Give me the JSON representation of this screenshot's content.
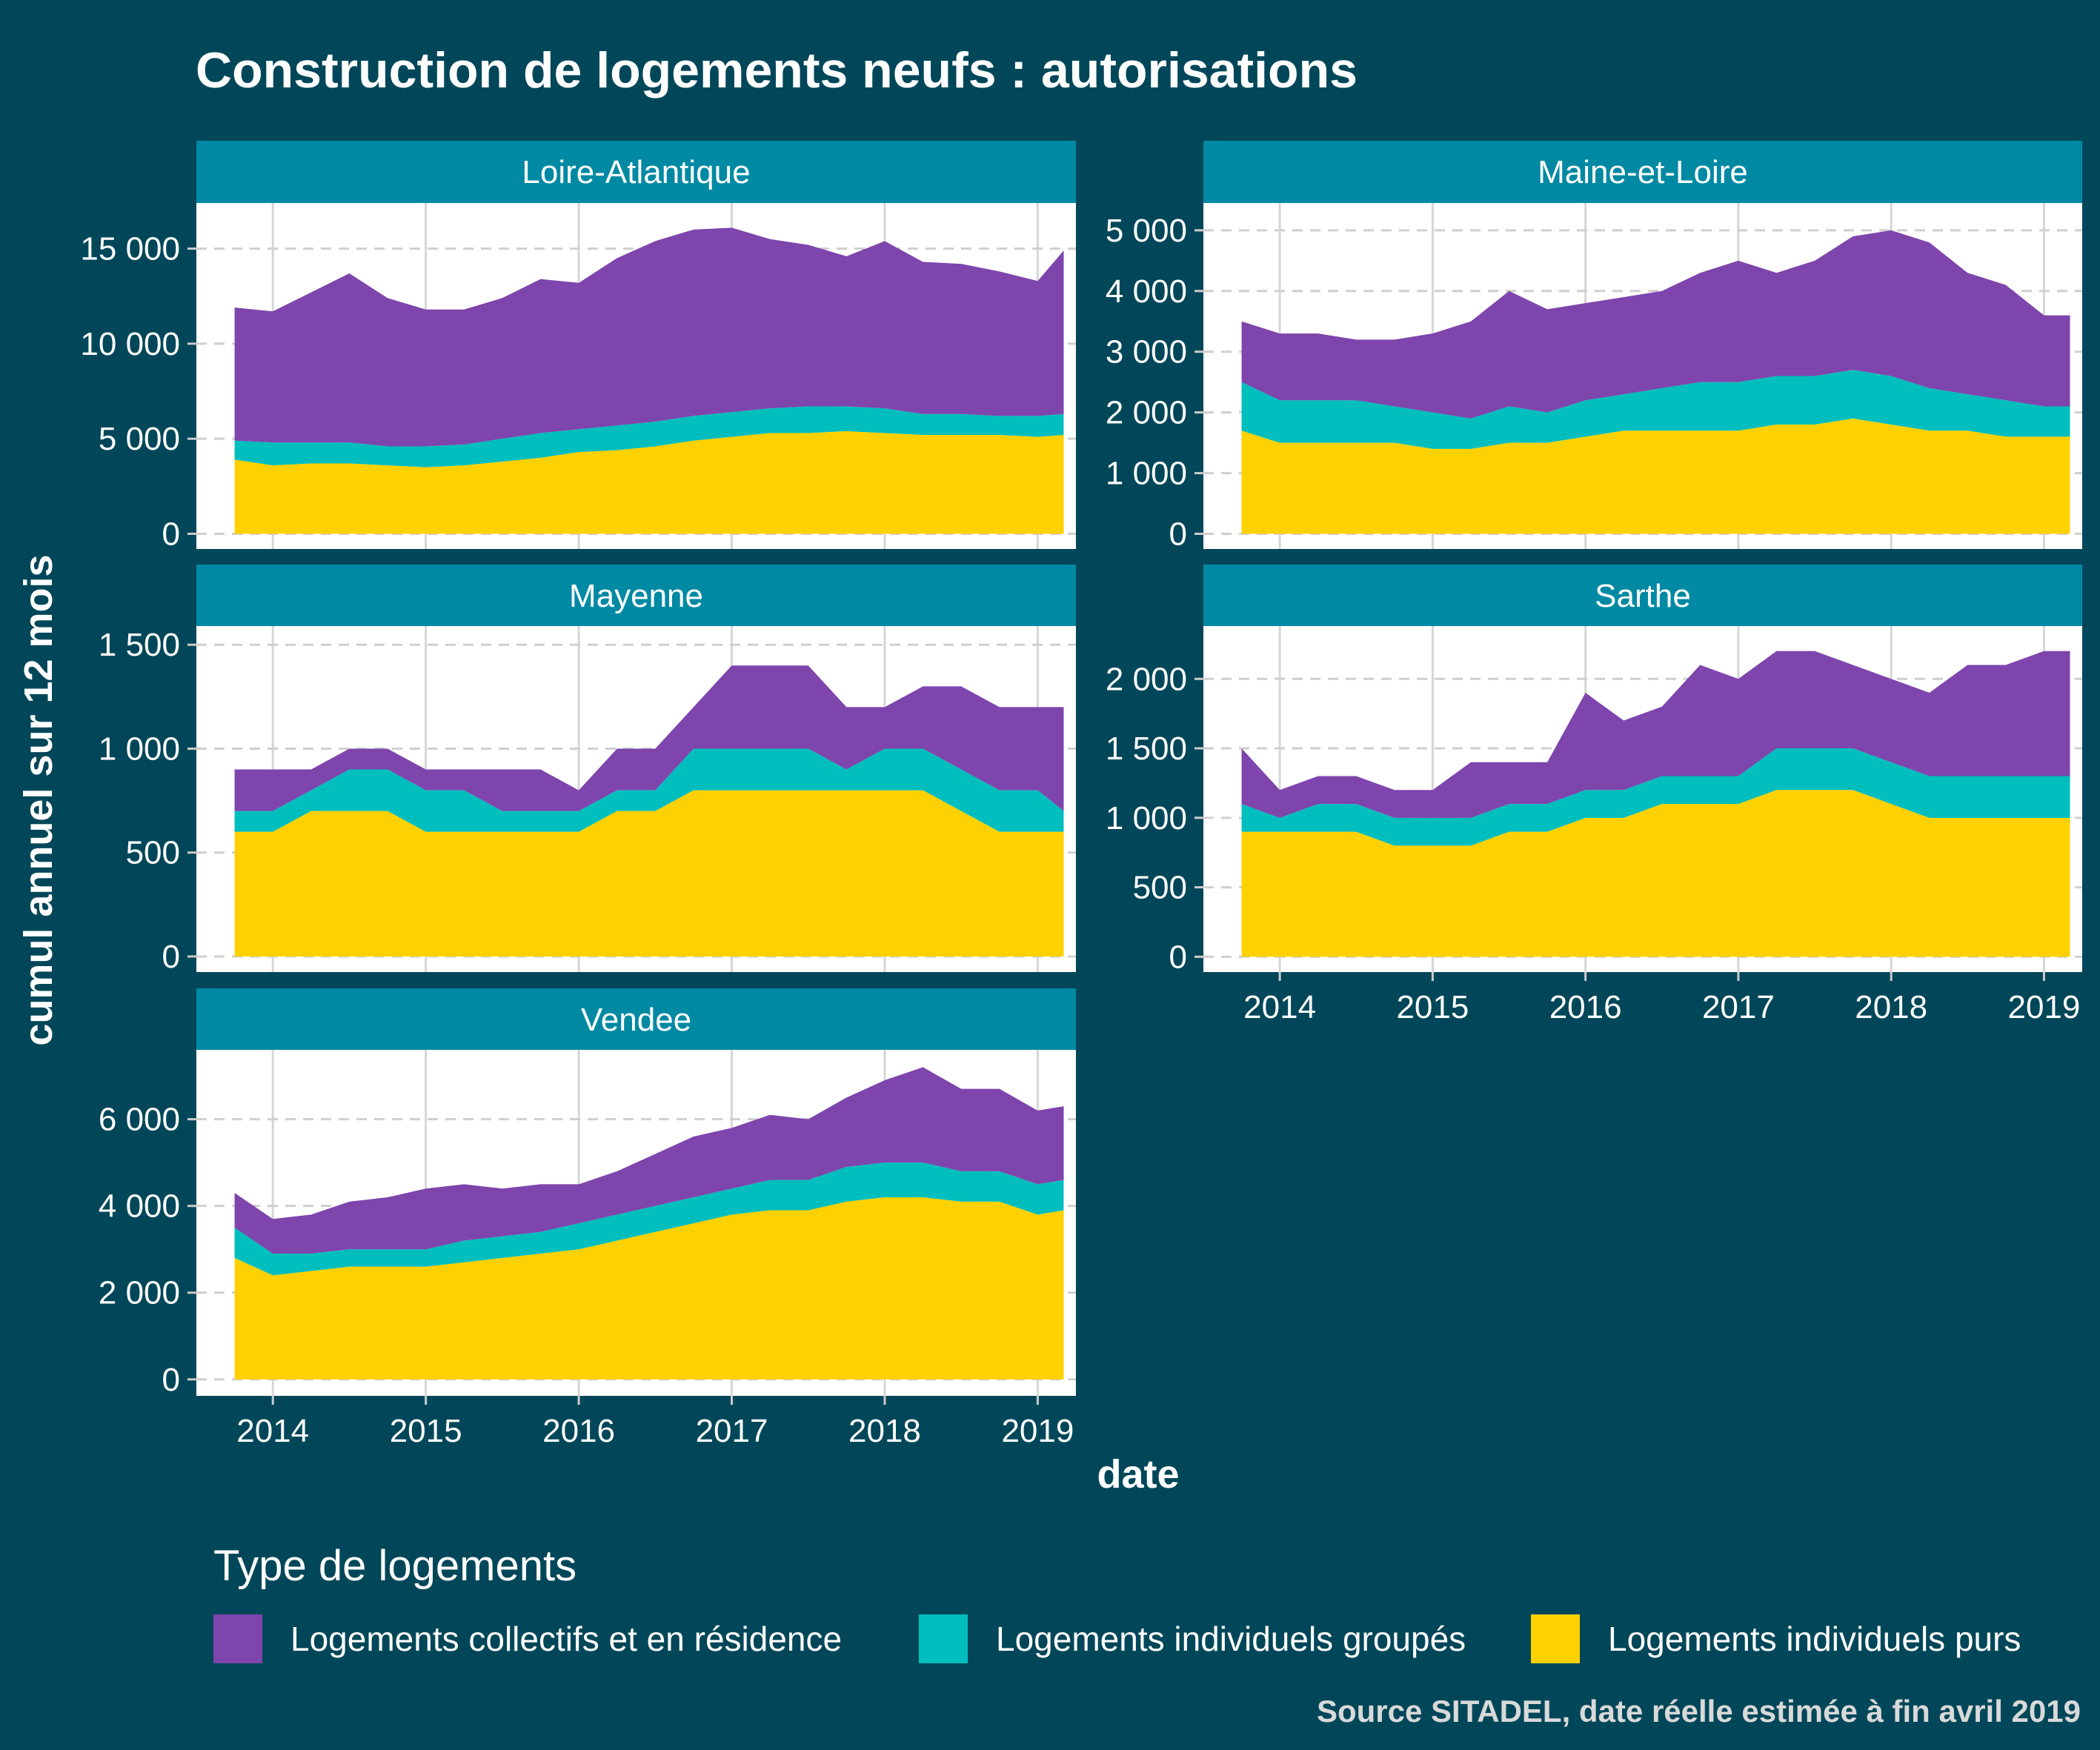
{
  "title": "Construction de logements neufs : autorisations",
  "caption": "Source SITADEL, date réelle estimée à fin avril 2019",
  "colors": {
    "background": "#014759",
    "strip": "#0089A3",
    "panel": "#ffffff",
    "collectifs": "#7E45AC",
    "groupes": "#00BEBE",
    "purs": "#FFD100"
  },
  "legend": {
    "title": "Type de logements",
    "items": [
      {
        "label": "Logements collectifs et en résidence",
        "color": "#7E45AC"
      },
      {
        "label": "Logements individuels groupés",
        "color": "#00BEBE"
      },
      {
        "label": "Logements individuels purs",
        "color": "#FFD100"
      }
    ]
  },
  "chart_data": {
    "type": "area",
    "stacked": true,
    "xlabel": "date",
    "ylabel": "cumul annuel sur 12 mois",
    "x_ticks": [
      "2014",
      "2015",
      "2016",
      "2017",
      "2018",
      "2019"
    ],
    "x_range": [
      2013.5,
      2019.25
    ],
    "grid": true,
    "legend_position": "bottom",
    "panels": [
      {
        "name": "Loire-Atlantique",
        "ylim": [
          -800,
          17400
        ],
        "y_ticks": [
          0,
          5000,
          10000,
          15000
        ],
        "y_tick_labels": [
          "0",
          "5 000",
          "10 000",
          "15 000"
        ],
        "x": [
          2013.75,
          2014.0,
          2014.25,
          2014.5,
          2014.75,
          2015.0,
          2015.25,
          2015.5,
          2015.75,
          2016.0,
          2016.25,
          2016.5,
          2016.75,
          2017.0,
          2017.25,
          2017.5,
          2017.75,
          2018.0,
          2018.25,
          2018.5,
          2018.75,
          2019.0,
          2019.17
        ],
        "series": [
          {
            "name": "Logements individuels purs",
            "values": [
              3900,
              3600,
              3700,
              3700,
              3600,
              3500,
              3600,
              3800,
              4000,
              4300,
              4400,
              4600,
              4900,
              5100,
              5300,
              5300,
              5400,
              5300,
              5200,
              5200,
              5200,
              5100,
              5200
            ]
          },
          {
            "name": "Logements individuels groupés",
            "values": [
              1000,
              1200,
              1100,
              1100,
              1000,
              1100,
              1100,
              1200,
              1300,
              1200,
              1300,
              1300,
              1300,
              1300,
              1300,
              1400,
              1300,
              1300,
              1100,
              1100,
              1000,
              1100,
              1100
            ]
          },
          {
            "name": "Logements collectifs et en résidence",
            "values": [
              7000,
              6900,
              7900,
              8900,
              7800,
              7200,
              7100,
              7400,
              8100,
              7700,
              8800,
              9500,
              9800,
              9700,
              8900,
              8500,
              7900,
              8800,
              8000,
              7900,
              7600,
              7100,
              8600
            ]
          }
        ]
      },
      {
        "name": "Maine-et-Loire",
        "ylim": [
          -250,
          5450
        ],
        "y_ticks": [
          0,
          1000,
          2000,
          3000,
          4000,
          5000
        ],
        "y_tick_labels": [
          "0",
          "1 000",
          "2 000",
          "3 000",
          "4 000",
          "5 000"
        ],
        "x": [
          2013.75,
          2014.0,
          2014.25,
          2014.5,
          2014.75,
          2015.0,
          2015.25,
          2015.5,
          2015.75,
          2016.0,
          2016.25,
          2016.5,
          2016.75,
          2017.0,
          2017.25,
          2017.5,
          2017.75,
          2018.0,
          2018.25,
          2018.5,
          2018.75,
          2019.0,
          2019.17
        ],
        "series": [
          {
            "name": "Logements individuels purs",
            "values": [
              1700,
              1500,
              1500,
              1500,
              1500,
              1400,
              1400,
              1500,
              1500,
              1600,
              1700,
              1700,
              1700,
              1700,
              1800,
              1800,
              1900,
              1800,
              1700,
              1700,
              1600,
              1600,
              1600
            ]
          },
          {
            "name": "Logements individuels groupés",
            "values": [
              800,
              700,
              700,
              700,
              600,
              600,
              500,
              600,
              500,
              600,
              600,
              700,
              800,
              800,
              800,
              800,
              800,
              800,
              700,
              600,
              600,
              500,
              500
            ]
          },
          {
            "name": "Logements collectifs et en résidence",
            "values": [
              1000,
              1100,
              1100,
              1000,
              1100,
              1300,
              1600,
              1900,
              1700,
              1600,
              1600,
              1600,
              1800,
              2000,
              1700,
              1900,
              2200,
              2400,
              2400,
              2000,
              1900,
              1500,
              1500
            ]
          }
        ]
      },
      {
        "name": "Mayenne",
        "ylim": [
          -75,
          1590
        ],
        "y_ticks": [
          0,
          500,
          1000,
          1500
        ],
        "y_tick_labels": [
          "0",
          "500",
          "1 000",
          "1 500"
        ],
        "x": [
          2013.75,
          2014.0,
          2014.25,
          2014.5,
          2014.75,
          2015.0,
          2015.25,
          2015.5,
          2015.75,
          2016.0,
          2016.25,
          2016.5,
          2016.75,
          2017.0,
          2017.25,
          2017.5,
          2017.75,
          2018.0,
          2018.25,
          2018.5,
          2018.75,
          2019.0,
          2019.17
        ],
        "series": [
          {
            "name": "Logements individuels purs",
            "values": [
              600,
              600,
              700,
              700,
              700,
              600,
              600,
              600,
              600,
              600,
              700,
              700,
              800,
              800,
              800,
              800,
              800,
              800,
              800,
              700,
              600,
              600,
              600
            ]
          },
          {
            "name": "Logements individuels groupés",
            "values": [
              100,
              100,
              100,
              200,
              200,
              200,
              200,
              100,
              100,
              100,
              100,
              100,
              200,
              200,
              200,
              200,
              100,
              200,
              200,
              200,
              200,
              200,
              100
            ]
          },
          {
            "name": "Logements collectifs et en résidence",
            "values": [
              200,
              200,
              100,
              100,
              100,
              100,
              100,
              200,
              200,
              100,
              200,
              200,
              200,
              400,
              400,
              400,
              300,
              200,
              300,
              400,
              400,
              400,
              500
            ]
          }
        ]
      },
      {
        "name": "Sarthe",
        "ylim": [
          -110,
          2380
        ],
        "y_ticks": [
          0,
          500,
          1000,
          1500,
          2000
        ],
        "y_tick_labels": [
          "0",
          "500",
          "1 000",
          "1 500",
          "2 000"
        ],
        "x": [
          2013.75,
          2014.0,
          2014.25,
          2014.5,
          2014.75,
          2015.0,
          2015.25,
          2015.5,
          2015.75,
          2016.0,
          2016.25,
          2016.5,
          2016.75,
          2017.0,
          2017.25,
          2017.5,
          2017.75,
          2018.0,
          2018.25,
          2018.5,
          2018.75,
          2019.0,
          2019.17
        ],
        "series": [
          {
            "name": "Logements individuels purs",
            "values": [
              900,
              900,
              900,
              900,
              800,
              800,
              800,
              900,
              900,
              1000,
              1000,
              1100,
              1100,
              1100,
              1200,
              1200,
              1200,
              1100,
              1000,
              1000,
              1000,
              1000,
              1000
            ]
          },
          {
            "name": "Logements individuels groupés",
            "values": [
              200,
              100,
              200,
              200,
              200,
              200,
              200,
              200,
              200,
              200,
              200,
              200,
              200,
              200,
              300,
              300,
              300,
              300,
              300,
              300,
              300,
              300,
              300
            ]
          },
          {
            "name": "Logements collectifs et en résidence",
            "values": [
              400,
              200,
              200,
              200,
              200,
              200,
              400,
              300,
              300,
              700,
              500,
              500,
              800,
              700,
              700,
              700,
              600,
              600,
              600,
              800,
              800,
              900,
              900
            ]
          }
        ]
      },
      {
        "name": "Vendee",
        "ylim": [
          -380,
          7600
        ],
        "y_ticks": [
          0,
          2000,
          4000,
          6000
        ],
        "y_tick_labels": [
          "0",
          "2 000",
          "4 000",
          "6 000"
        ],
        "x": [
          2013.75,
          2014.0,
          2014.25,
          2014.5,
          2014.75,
          2015.0,
          2015.25,
          2015.5,
          2015.75,
          2016.0,
          2016.25,
          2016.5,
          2016.75,
          2017.0,
          2017.25,
          2017.5,
          2017.75,
          2018.0,
          2018.25,
          2018.5,
          2018.75,
          2019.0,
          2019.17
        ],
        "series": [
          {
            "name": "Logements individuels purs",
            "values": [
              2800,
              2400,
              2500,
              2600,
              2600,
              2600,
              2700,
              2800,
              2900,
              3000,
              3200,
              3400,
              3600,
              3800,
              3900,
              3900,
              4100,
              4200,
              4200,
              4100,
              4100,
              3800,
              3900
            ]
          },
          {
            "name": "Logements individuels groupés",
            "values": [
              700,
              500,
              400,
              400,
              400,
              400,
              500,
              500,
              500,
              600,
              600,
              600,
              600,
              600,
              700,
              700,
              800,
              800,
              800,
              700,
              700,
              700,
              700
            ]
          },
          {
            "name": "Logements collectifs et en résidence",
            "values": [
              800,
              800,
              900,
              1100,
              1200,
              1400,
              1300,
              1100,
              1100,
              900,
              1000,
              1200,
              1400,
              1400,
              1500,
              1400,
              1600,
              1900,
              2200,
              1900,
              1900,
              1700,
              1700
            ]
          }
        ]
      }
    ]
  }
}
